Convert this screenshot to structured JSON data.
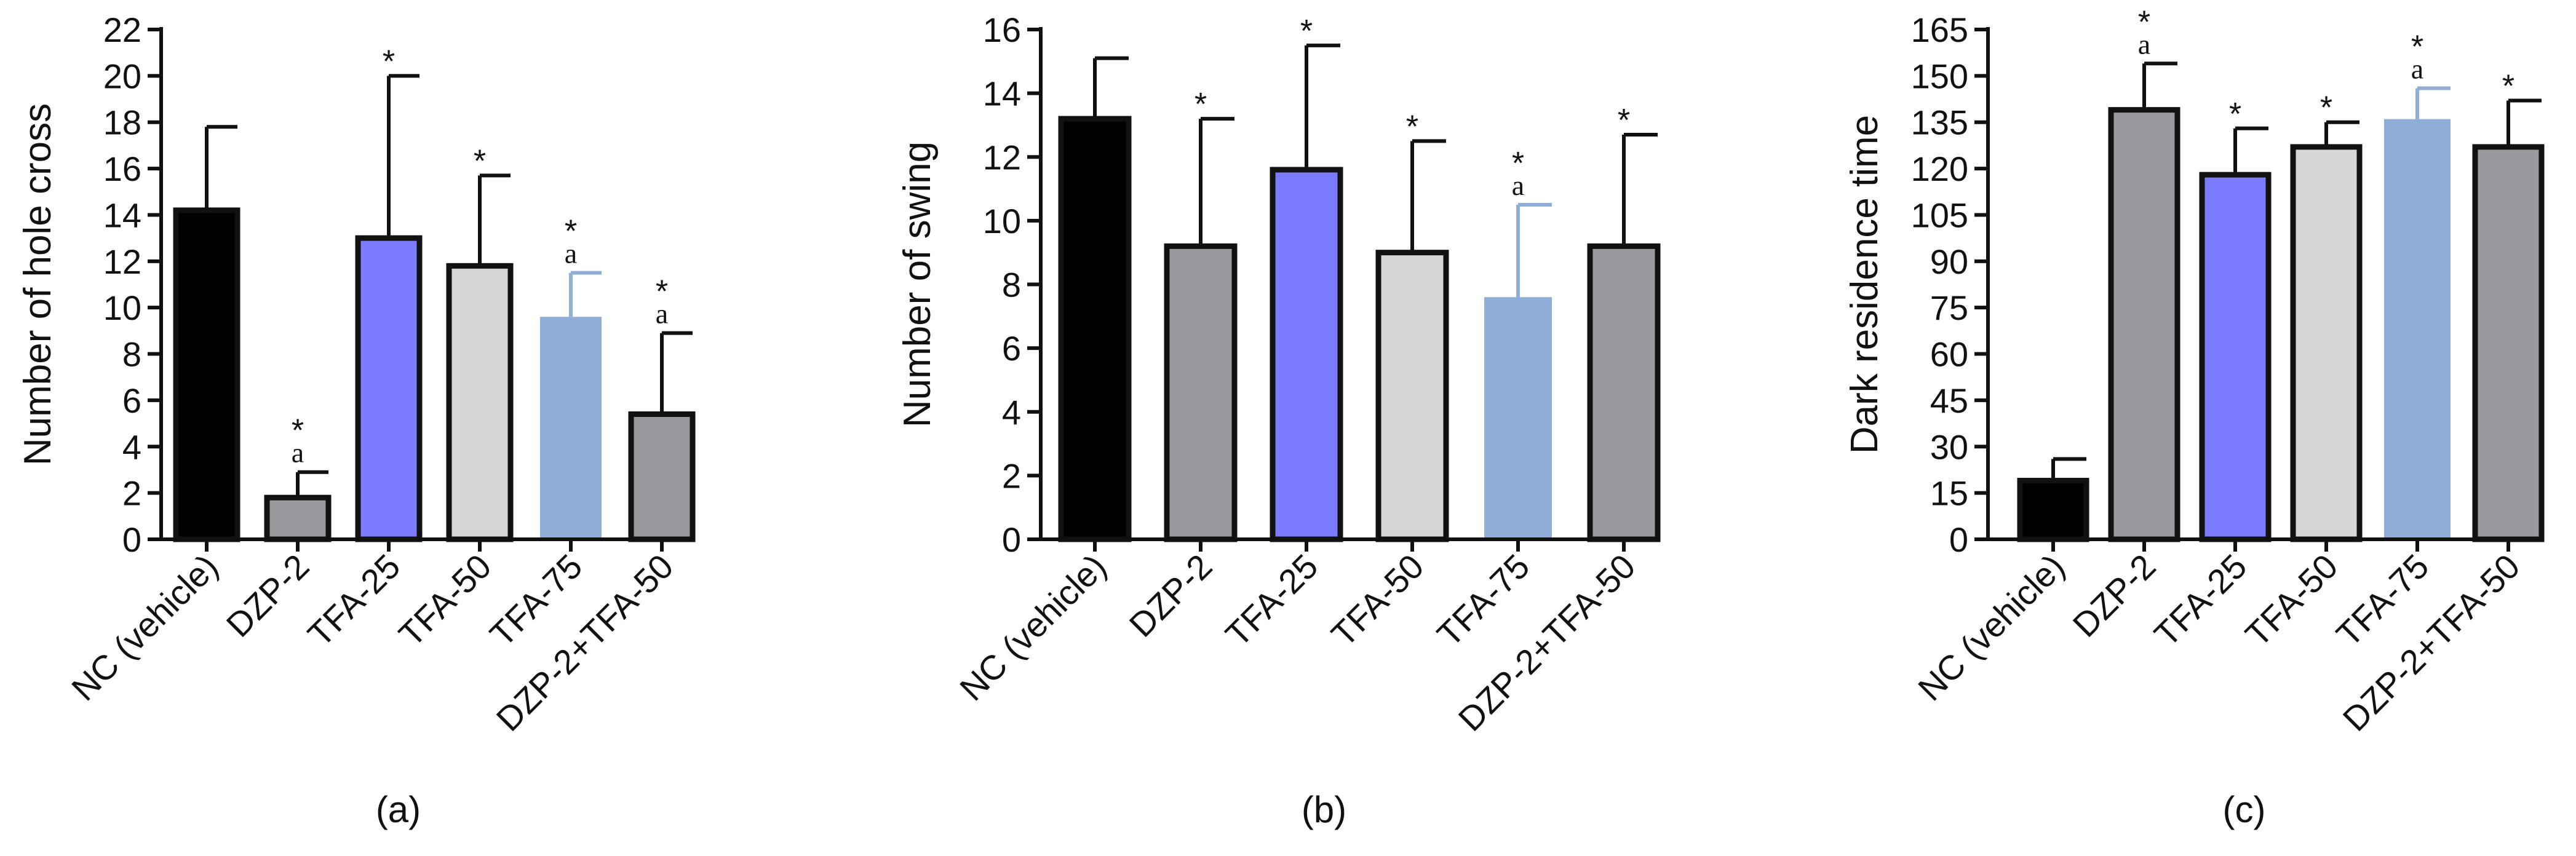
{
  "chart_data": [
    {
      "type": "bar",
      "panel_label": "(a)",
      "title": "",
      "xlabel": "",
      "ylabel": "Number of hole cross",
      "ylim": [
        0,
        22
      ],
      "yticks": [
        0,
        2,
        4,
        6,
        8,
        10,
        12,
        14,
        16,
        18,
        20,
        22
      ],
      "categories": [
        "NC (vehicle)",
        "DZP-2",
        "TFA-25",
        "TFA-50",
        "TFA-75",
        "DZP-2+TFA-50"
      ],
      "values": [
        14.2,
        1.8,
        13.0,
        11.8,
        9.6,
        5.4
      ],
      "error": [
        3.6,
        1.1,
        7.0,
        3.9,
        1.9,
        3.5
      ],
      "annotations": [
        [],
        [
          "*",
          "a"
        ],
        [
          "*"
        ],
        [
          "*"
        ],
        [
          "*",
          "a"
        ],
        [
          "*",
          "a"
        ]
      ],
      "bar_colors": [
        "#000000",
        "#9a9a9e",
        "#7b7bff",
        "#d6d6d6",
        "#8fadd6",
        "#9a9a9e"
      ],
      "bar_outline": [
        true,
        true,
        true,
        true,
        false,
        true
      ]
    },
    {
      "type": "bar",
      "panel_label": "(b)",
      "title": "",
      "xlabel": "",
      "ylabel": "Number of swing",
      "ylim": [
        0,
        16
      ],
      "yticks": [
        0,
        2,
        4,
        6,
        8,
        10,
        12,
        14,
        16
      ],
      "categories": [
        "NC (vehicle)",
        "DZP-2",
        "TFA-25",
        "TFA-50",
        "TFA-75",
        "DZP-2+TFA-50"
      ],
      "values": [
        13.2,
        9.2,
        11.6,
        9.0,
        7.6,
        9.2
      ],
      "error": [
        1.9,
        4.0,
        3.9,
        3.5,
        2.9,
        3.5
      ],
      "annotations": [
        [],
        [
          "*"
        ],
        [
          "*"
        ],
        [
          "*"
        ],
        [
          "*",
          "a"
        ],
        [
          "*"
        ]
      ],
      "bar_colors": [
        "#000000",
        "#9a9a9e",
        "#7b7bff",
        "#d6d6d6",
        "#8fadd6",
        "#9a9a9e"
      ],
      "bar_outline": [
        true,
        true,
        true,
        true,
        false,
        true
      ]
    },
    {
      "type": "bar",
      "panel_label": "(c)",
      "title": "",
      "xlabel": "",
      "ylabel": "Dark residence time",
      "ylim": [
        0,
        165
      ],
      "yticks": [
        0,
        15,
        30,
        45,
        60,
        75,
        90,
        105,
        120,
        135,
        150,
        165
      ],
      "categories": [
        "NC (vehicle)",
        "DZP-2",
        "TFA-25",
        "TFA-50",
        "TFA-75",
        "DZP-2+TFA-50"
      ],
      "values": [
        19,
        139,
        118,
        127,
        136,
        127
      ],
      "error": [
        7,
        15,
        15,
        8,
        10,
        15
      ],
      "annotations": [
        [],
        [
          "*",
          "a"
        ],
        [
          "*"
        ],
        [
          "*"
        ],
        [
          "*",
          "a"
        ],
        [
          "*"
        ]
      ],
      "bar_colors": [
        "#000000",
        "#9a9a9e",
        "#7b7bff",
        "#d6d6d6",
        "#8fadd6",
        "#9a9a9e"
      ],
      "bar_outline": [
        true,
        true,
        true,
        true,
        false,
        true
      ]
    }
  ]
}
